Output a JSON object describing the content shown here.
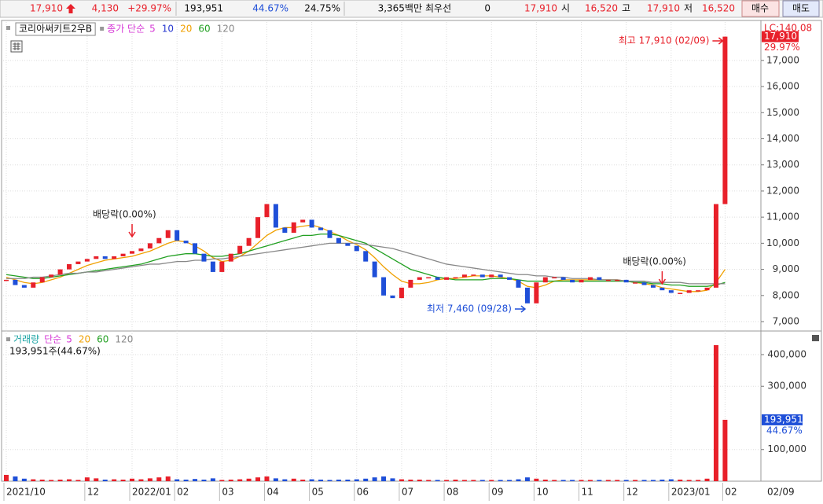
{
  "header": {
    "price": "17,910",
    "change": "4,130",
    "change_pct": "+29.97%",
    "volume": "193,951",
    "volume_ratio": "44.67%",
    "turnover": "24.75%",
    "amount": "3,365백만",
    "best_label": "최우선",
    "best_value": "0",
    "best_price": "17,910",
    "open_label": "시",
    "open": "16,520",
    "high_label": "고",
    "high": "17,910",
    "low_label": "저",
    "low": "16,520",
    "buy": "매수",
    "sell": "매도"
  },
  "chart_data": {
    "type": "candlestick",
    "title": "코리아써키트2우B",
    "ma_label": "종가 단순",
    "categories": [
      "2021/10",
      null,
      null,
      null,
      null,
      null,
      null,
      null,
      null,
      "12",
      null,
      null,
      null,
      null,
      "2022/01",
      null,
      null,
      null,
      null,
      "02",
      null,
      null,
      null,
      null,
      "03",
      null,
      null,
      null,
      null,
      "04",
      null,
      null,
      null,
      null,
      "05",
      null,
      null,
      null,
      null,
      "06",
      null,
      null,
      null,
      null,
      "07",
      null,
      null,
      null,
      null,
      "08",
      null,
      null,
      null,
      null,
      "09",
      null,
      null,
      null,
      null,
      "10",
      null,
      null,
      null,
      null,
      "11",
      null,
      null,
      null,
      null,
      "12",
      null,
      null,
      null,
      null,
      "2023/01",
      null,
      null,
      null,
      null,
      null,
      "02"
    ],
    "close": [
      8600,
      8400,
      8300,
      8500,
      8700,
      8800,
      9000,
      9200,
      9300,
      9400,
      9500,
      9400,
      9500,
      9600,
      9700,
      9800,
      10000,
      10200,
      10500,
      10100,
      10000,
      9600,
      9300,
      8900,
      9300,
      9600,
      9900,
      10200,
      11000,
      11500,
      10600,
      10400,
      10800,
      10900,
      10600,
      10500,
      10200,
      10000,
      9900,
      9700,
      9300,
      8700,
      8000,
      7900,
      8300,
      8600,
      8700,
      8700,
      8600,
      8700,
      8700,
      8800,
      8800,
      8700,
      8800,
      8700,
      8600,
      8300,
      7700,
      8500,
      8700,
      8700,
      8600,
      8500,
      8600,
      8700,
      8600,
      8600,
      8600,
      8500,
      8500,
      8400,
      8300,
      8200,
      8100,
      8100,
      8200,
      8200,
      8300,
      11500,
      17910
    ],
    "up_color": "#e8202a",
    "down_color": "#1f4fd8",
    "series": [
      {
        "name": "5",
        "color": "#d63ad6"
      },
      {
        "name": "10",
        "color": "#2a3ad0"
      },
      {
        "name": "20",
        "color": "#f0a000",
        "values": [
          8700,
          8600,
          8500,
          8450,
          8500,
          8600,
          8700,
          8850,
          9000,
          9150,
          9250,
          9350,
          9400,
          9450,
          9500,
          9600,
          9700,
          9850,
          10000,
          10100,
          10050,
          9900,
          9700,
          9450,
          9300,
          9350,
          9500,
          9700,
          10000,
          10300,
          10500,
          10600,
          10600,
          10650,
          10700,
          10600,
          10450,
          10300,
          10100,
          9950,
          9750,
          9450,
          9100,
          8800,
          8550,
          8450,
          8450,
          8500,
          8600,
          8650,
          8650,
          8700,
          8750,
          8750,
          8750,
          8700,
          8650,
          8550,
          8350,
          8300,
          8400,
          8550,
          8600,
          8600,
          8600,
          8600,
          8600,
          8600,
          8600,
          8550,
          8500,
          8450,
          8400,
          8300,
          8250,
          8200,
          8150,
          8150,
          8200,
          8500,
          9000
        ]
      },
      {
        "name": "60",
        "color": "#22a022",
        "values": [
          8800,
          8750,
          8700,
          8650,
          8650,
          8700,
          8750,
          8800,
          8850,
          8900,
          8950,
          9000,
          9050,
          9100,
          9150,
          9200,
          9300,
          9400,
          9500,
          9550,
          9600,
          9600,
          9550,
          9500,
          9500,
          9550,
          9600,
          9700,
          9800,
          9900,
          10000,
          10100,
          10200,
          10300,
          10300,
          10350,
          10350,
          10300,
          10200,
          10100,
          10000,
          9800,
          9600,
          9400,
          9200,
          9000,
          8900,
          8800,
          8700,
          8650,
          8600,
          8600,
          8600,
          8600,
          8650,
          8650,
          8650,
          8600,
          8550,
          8550,
          8550,
          8550,
          8550,
          8550,
          8550,
          8550,
          8550,
          8550,
          8550,
          8550,
          8500,
          8500,
          8450,
          8450,
          8400,
          8400,
          8350,
          8350,
          8350,
          8400,
          8500
        ]
      },
      {
        "name": "120",
        "color": "#888888",
        "values": [
          8650,
          8650,
          8650,
          8700,
          8700,
          8750,
          8800,
          8850,
          8850,
          8900,
          8900,
          8950,
          9000,
          9050,
          9100,
          9150,
          9200,
          9200,
          9250,
          9300,
          9300,
          9350,
          9350,
          9400,
          9400,
          9450,
          9500,
          9550,
          9600,
          9650,
          9700,
          9750,
          9800,
          9850,
          9900,
          9950,
          10000,
          10000,
          10000,
          10000,
          9950,
          9900,
          9850,
          9800,
          9700,
          9600,
          9500,
          9400,
          9300,
          9200,
          9150,
          9100,
          9050,
          9000,
          8950,
          8900,
          8850,
          8800,
          8800,
          8750,
          8750,
          8700,
          8700,
          8650,
          8650,
          8650,
          8600,
          8600,
          8600,
          8550,
          8550,
          8550,
          8500,
          8500,
          8500,
          8500,
          8450,
          8450,
          8450,
          8450,
          8450
        ]
      }
    ],
    "ylim": [
      6670,
      18470
    ],
    "yticks": [
      {
        "value": 7000,
        "label": "7,000"
      },
      {
        "value": 8000,
        "label": "8,000"
      },
      {
        "value": 9000,
        "label": "9,000"
      },
      {
        "value": 10000,
        "label": "10,000"
      },
      {
        "value": 11000,
        "label": "11,000"
      },
      {
        "value": 12000,
        "label": "12,000"
      },
      {
        "value": 13000,
        "label": "13,000"
      },
      {
        "value": 14000,
        "label": "14,000"
      },
      {
        "value": 15000,
        "label": "15,000"
      },
      {
        "value": 16000,
        "label": "16,000"
      },
      {
        "value": 17000,
        "label": "17,000"
      }
    ],
    "last_price": {
      "value": 17910,
      "label": "17,910"
    },
    "last_pct": "29.97%",
    "lc": "LC:140.08",
    "annotations": [
      {
        "text": "배당락(0.00%)",
        "index": 14
      },
      {
        "text": "배당락(0.00%)",
        "index": 73
      },
      {
        "text": "최고 17,910 (02/09)",
        "index": 80
      },
      {
        "text": "최저 7,460 (09/28)",
        "index": 58
      }
    ],
    "cursor_date": "02/09",
    "volume_label": "거래량",
    "volume_ma_label": "단순",
    "volume_ma": [
      {
        "name": "5",
        "color": "#d63ad6"
      },
      {
        "name": "20",
        "color": "#f0a000"
      },
      {
        "name": "60",
        "color": "#22a022"
      },
      {
        "name": "120",
        "color": "#888888"
      }
    ],
    "volume_note": "193,951주(44.67%)",
    "volume": [
      20000,
      15000,
      8000,
      6000,
      5000,
      4000,
      5000,
      6000,
      4000,
      12000,
      9000,
      5000,
      6000,
      5000,
      8000,
      6000,
      9000,
      12000,
      15000,
      6000,
      5000,
      7000,
      5000,
      9000,
      4000,
      5000,
      6000,
      8000,
      12000,
      15000,
      9000,
      6000,
      8000,
      5000,
      6000,
      5000,
      4000,
      5000,
      5000,
      6000,
      8000,
      12000,
      15000,
      9000,
      6000,
      5000,
      5000,
      4000,
      4000,
      4000,
      5000,
      4000,
      4000,
      4000,
      4000,
      4000,
      4000,
      6000,
      12000,
      8000,
      5000,
      4000,
      4000,
      4000,
      4000,
      4000,
      4000,
      4000,
      4000,
      4000,
      4000,
      4000,
      4000,
      5000,
      6000,
      5000,
      4000,
      4000,
      8000,
      430000,
      193951
    ],
    "vlim": [
      0,
      472000
    ],
    "vticks": [
      {
        "value": 100000,
        "label": "100,000"
      },
      {
        "value": 300000,
        "label": "300,000"
      },
      {
        "value": 400000,
        "label": "400,000"
      }
    ],
    "last_volume": {
      "value": 193951,
      "label": "193,951"
    },
    "last_volume_pct": "44.67%",
    "grid": true
  }
}
